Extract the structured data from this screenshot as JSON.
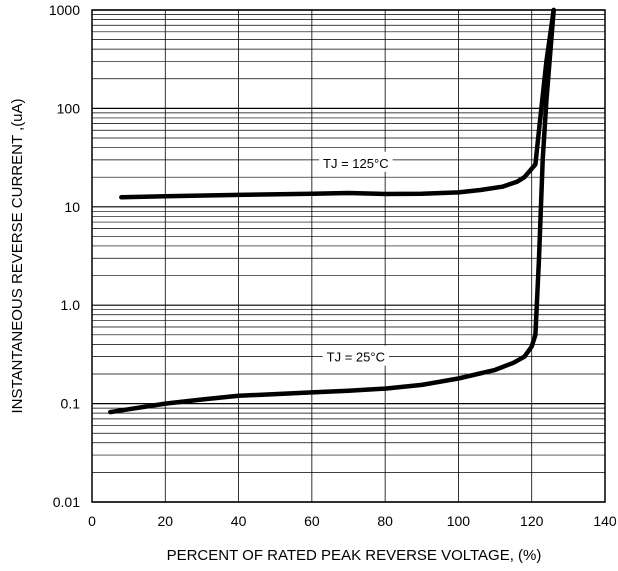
{
  "chart_data": {
    "type": "line",
    "xlabel": "PERCENT OF RATED PEAK REVERSE VOLTAGE,  (%)",
    "ylabel": "INSTANTANEOUS REVERSE CURRENT ,(uA)",
    "xlim": [
      0,
      140
    ],
    "ylim": [
      0.01,
      1000
    ],
    "yscale": "log",
    "grid": true,
    "x_ticks": [
      {
        "value": 0,
        "label": "0"
      },
      {
        "value": 20,
        "label": "20"
      },
      {
        "value": 40,
        "label": "40"
      },
      {
        "value": 60,
        "label": "60"
      },
      {
        "value": 80,
        "label": "80"
      },
      {
        "value": 100,
        "label": "100"
      },
      {
        "value": 120,
        "label": "120"
      },
      {
        "value": 140,
        "label": "140"
      }
    ],
    "y_ticks": [
      {
        "value": 0.01,
        "label": "0.01"
      },
      {
        "value": 0.1,
        "label": "0.1"
      },
      {
        "value": 1,
        "label": "1.0"
      },
      {
        "value": 10,
        "label": "10"
      },
      {
        "value": 100,
        "label": "100"
      },
      {
        "value": 1000,
        "label": "1000"
      }
    ],
    "series": [
      {
        "name": "TJ = 125°C",
        "label_at": {
          "x": 72,
          "y": 28
        },
        "points": [
          [
            8,
            12.5
          ],
          [
            20,
            12.8
          ],
          [
            40,
            13.2
          ],
          [
            60,
            13.6
          ],
          [
            70,
            13.8
          ],
          [
            80,
            13.5
          ],
          [
            90,
            13.6
          ],
          [
            100,
            14.0
          ],
          [
            106,
            14.8
          ],
          [
            112,
            16.0
          ],
          [
            116,
            18.0
          ],
          [
            118,
            20.0
          ],
          [
            121,
            27.0
          ],
          [
            122,
            60.0
          ],
          [
            124,
            300.0
          ],
          [
            126,
            1000.0
          ]
        ]
      },
      {
        "name": "TJ = 25°C",
        "label_at": {
          "x": 72,
          "y": 0.3
        },
        "points": [
          [
            5,
            0.082
          ],
          [
            20,
            0.1
          ],
          [
            30,
            0.11
          ],
          [
            40,
            0.12
          ],
          [
            50,
            0.125
          ],
          [
            60,
            0.13
          ],
          [
            70,
            0.135
          ],
          [
            80,
            0.142
          ],
          [
            90,
            0.155
          ],
          [
            100,
            0.18
          ],
          [
            110,
            0.22
          ],
          [
            115,
            0.26
          ],
          [
            118,
            0.3
          ],
          [
            120,
            0.38
          ],
          [
            121,
            0.5
          ],
          [
            122,
            3.0
          ],
          [
            123,
            30.0
          ],
          [
            124,
            120.0
          ],
          [
            126,
            1000.0
          ]
        ]
      }
    ]
  }
}
